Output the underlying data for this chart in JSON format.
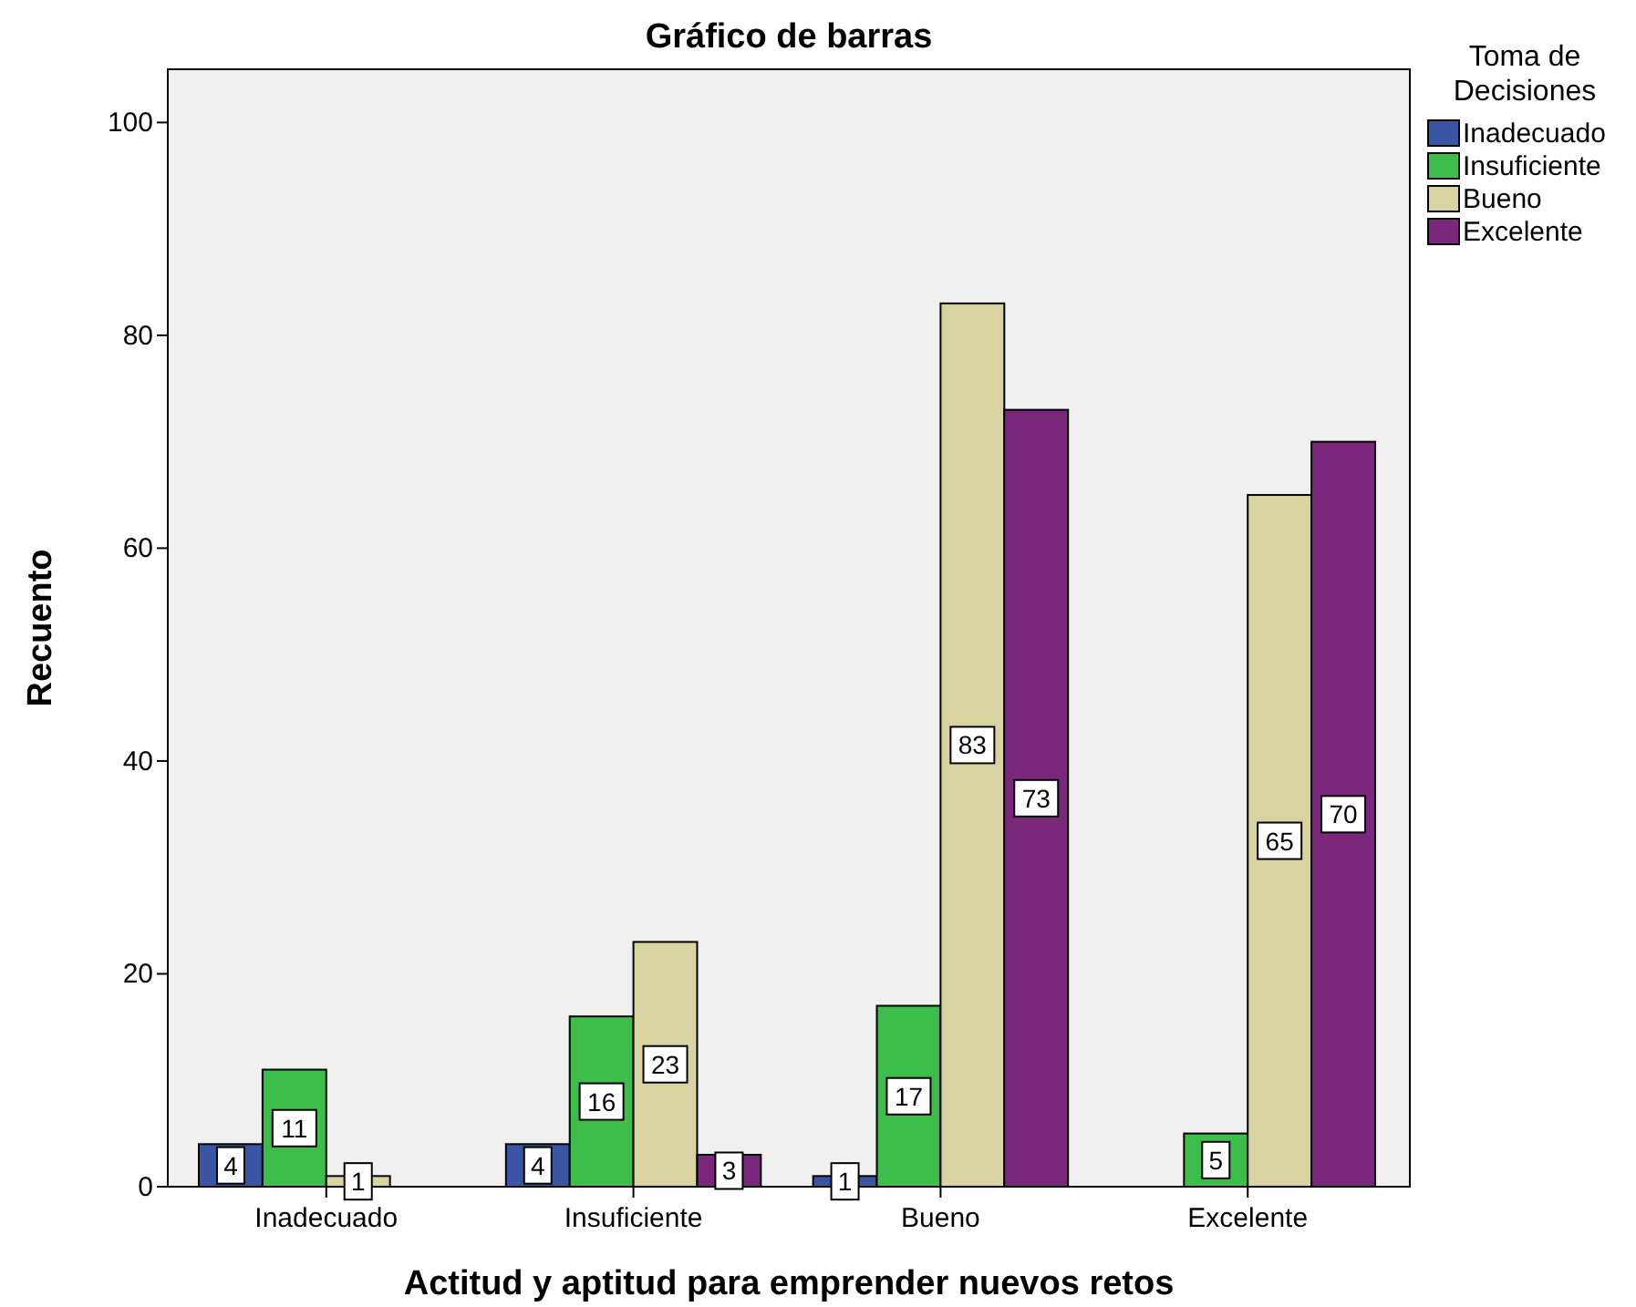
{
  "chart_data": {
    "type": "bar",
    "title": "Gráfico de barras",
    "xlabel": "Actitud y aptitud para emprender nuevos retos",
    "ylabel": "Recuento",
    "legend_title": "Toma de Decisiones",
    "categories": [
      "Inadecuado",
      "Insuficiente",
      "Bueno",
      "Excelente"
    ],
    "series": [
      {
        "name": "Inadecuado",
        "color": "#3a55a3",
        "values": [
          4,
          4,
          1,
          null
        ]
      },
      {
        "name": "Insuficiente",
        "color": "#3dbd4a",
        "values": [
          11,
          16,
          17,
          5
        ]
      },
      {
        "name": "Bueno",
        "color": "#d8d3a0",
        "values": [
          1,
          23,
          83,
          65
        ]
      },
      {
        "name": "Excelente",
        "color": "#7b287c",
        "values": [
          null,
          3,
          73,
          70
        ]
      }
    ],
    "ylim": [
      0,
      105
    ],
    "yticks": [
      0,
      20,
      40,
      60,
      80,
      100
    ],
    "grid": false,
    "legend": "top right",
    "data_labels": true
  }
}
